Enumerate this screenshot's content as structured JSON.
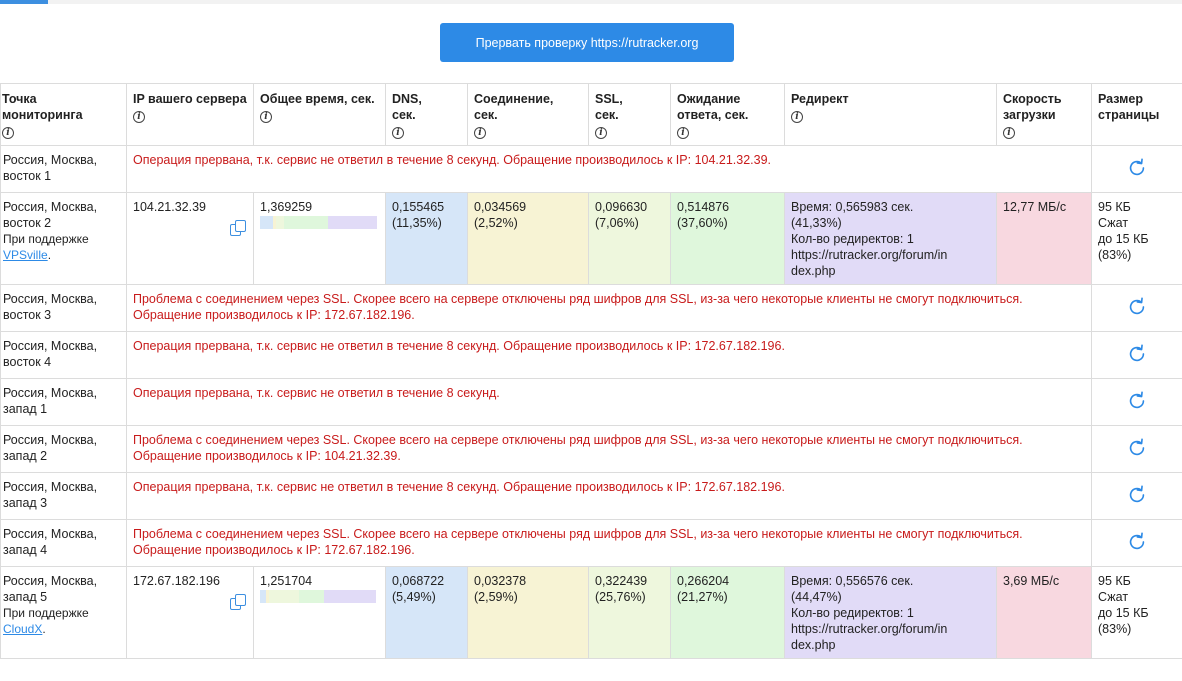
{
  "toolbar": {
    "stop_label": "Прервать проверку https://rutracker.org"
  },
  "headers": {
    "point": "Точка мониторинга",
    "ip": "IP вашего сервера",
    "total": "Общее время, сек.",
    "dns": "DNS, сек.",
    "conn": "Соединение, сек.",
    "ssl": "SSL, сек.",
    "wait": "Ожидание ответа, сек.",
    "redirect": "Редирект",
    "speed": "Скорость загрузки",
    "size": "Размер страницы",
    "info_icon": "i"
  },
  "rows": [
    {
      "location": "Россия, Москва, восток 1",
      "message": "Операция прервана, т.к. сервис не ответил в течение 8 секунд. Обращение производилось к IP: 104.21.32.39."
    },
    {
      "location": "Россия, Москва, восток 2",
      "support_prefix": "При поддержке",
      "support_link": "VPSville",
      "support_suffix": ".",
      "ip": "104.21.32.39",
      "total": "1,369259",
      "dns": "0,155465",
      "dns_pct": "(11,35%)",
      "conn": "0,034569",
      "conn_pct": "(2,52%)",
      "ssl": "0,096630",
      "ssl_pct": "(7,06%)",
      "wait": "0,514876",
      "wait_pct": "(37,60%)",
      "redirect_time": "Время: 0,565983 сек.",
      "redirect_pct": "(41,33%)",
      "redirect_count": "Кол-во редиректов: 1",
      "redirect_url": "https://rutracker.org/forum/index.php",
      "speed": "12,77 МБ/с",
      "size": "95 КБ",
      "size_compressed": "Сжат",
      "size_to": "до 15 КБ",
      "size_pct": "(83%)",
      "bar_fractions": [
        0.1135,
        0.0252,
        0.0706,
        0.376,
        0.4133
      ]
    },
    {
      "location": "Россия, Москва, восток 3",
      "message": "Проблема с соединением через SSL. Скорее всего на сервере отключены ряд шифров для SSL, из-за чего некоторые клиенты не смогут подключиться. Обращение производилось к IP: 172.67.182.196."
    },
    {
      "location": "Россия, Москва, восток 4",
      "message": "Операция прервана, т.к. сервис не ответил в течение 8 секунд. Обращение производилось к IP: 172.67.182.196."
    },
    {
      "location": "Россия, Москва, запад 1",
      "message": "Операция прервана, т.к. сервис не ответил в течение 8 секунд."
    },
    {
      "location": "Россия, Москва, запад 2",
      "message": "Проблема с соединением через SSL. Скорее всего на сервере отключены ряд шифров для SSL, из-за чего некоторые клиенты не смогут подключиться. Обращение производилось к IP: 104.21.32.39."
    },
    {
      "location": "Россия, Москва, запад 3",
      "message": "Операция прервана, т.к. сервис не ответил в течение 8 секунд. Обращение производилось к IP: 172.67.182.196."
    },
    {
      "location": "Россия, Москва, запад 4",
      "message": "Проблема с соединением через SSL. Скорее всего на сервере отключены ряд шифров для SSL, из-за чего некоторые клиенты не смогут подключиться. Обращение производилось к IP: 172.67.182.196."
    },
    {
      "location": "Россия, Москва, запад 5",
      "support_prefix": "При поддержке",
      "support_link": "CloudX",
      "support_suffix": ".",
      "ip": "172.67.182.196",
      "total": "1,251704",
      "dns": "0,068722",
      "dns_pct": "(5,49%)",
      "conn": "0,032378",
      "conn_pct": "(2,59%)",
      "ssl": "0,322439",
      "ssl_pct": "(25,76%)",
      "wait": "0,266204",
      "wait_pct": "(21,27%)",
      "redirect_time": "Время: 0,556576 сек.",
      "redirect_pct": "(44,47%)",
      "redirect_count": "Кол-во редиректов: 1",
      "redirect_url": "https://rutracker.org/forum/index.php",
      "speed": "3,69 МБ/с",
      "size": "95 КБ",
      "size_compressed": "Сжат",
      "size_to": "до 15 КБ",
      "size_pct": "(83%)",
      "bar_fractions": [
        0.0549,
        0.0259,
        0.2576,
        0.2127,
        0.4447
      ]
    }
  ],
  "icons": {
    "copy": "copy-icon",
    "refresh": "refresh-icon",
    "info": "info-icon"
  },
  "colors": {
    "accent": "#2d8ae6",
    "error": "#c81b1b",
    "dns": "#d6e6f8",
    "connection": "#f7f3d4",
    "ssl": "#eef7dd",
    "wait": "#dff7dc",
    "redirect": "#e1dbf7",
    "speed": "#f8d8e0"
  }
}
